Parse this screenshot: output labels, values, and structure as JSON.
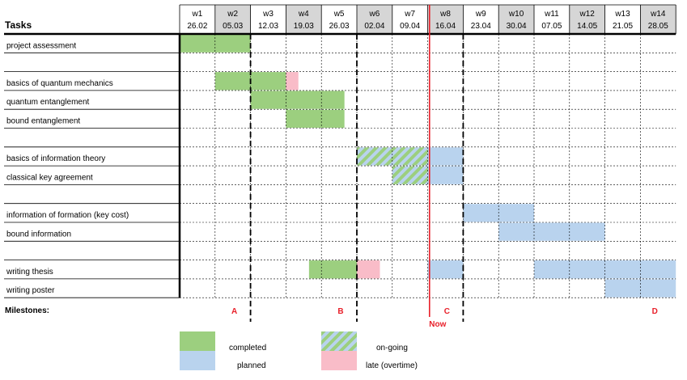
{
  "header": {
    "tasks_label": "Tasks"
  },
  "weeks": [
    {
      "label": "w1",
      "date": "26.02"
    },
    {
      "label": "w2",
      "date": "05.03"
    },
    {
      "label": "w3",
      "date": "12.03"
    },
    {
      "label": "w4",
      "date": "19.03"
    },
    {
      "label": "w5",
      "date": "26.03"
    },
    {
      "label": "w6",
      "date": "02.04"
    },
    {
      "label": "w7",
      "date": "09.04"
    },
    {
      "label": "w8",
      "date": "16.04"
    },
    {
      "label": "w9",
      "date": "23.04"
    },
    {
      "label": "w10",
      "date": "30.04"
    },
    {
      "label": "w11",
      "date": "07.05"
    },
    {
      "label": "w12",
      "date": "14.05"
    },
    {
      "label": "w13",
      "date": "21.05"
    },
    {
      "label": "w14",
      "date": "28.05"
    }
  ],
  "rows": [
    {
      "task": "project assessment",
      "bars": [
        {
          "status": "completed",
          "start": 0,
          "end": 2
        }
      ]
    },
    {
      "task": "",
      "bars": []
    },
    {
      "task": "basics of quantum mechanics",
      "bars": [
        {
          "status": "completed",
          "start": 1,
          "end": 3
        },
        {
          "status": "late",
          "start": 3,
          "end": 3.35
        }
      ]
    },
    {
      "task": "quantum entanglement",
      "bars": [
        {
          "status": "completed",
          "start": 2,
          "end": 4.65
        }
      ]
    },
    {
      "task": "bound entanglement",
      "bars": [
        {
          "status": "completed",
          "start": 3,
          "end": 4.65
        }
      ]
    },
    {
      "task": "",
      "bars": []
    },
    {
      "task": "basics of information theory",
      "bars": [
        {
          "status": "ongoing",
          "start": 5,
          "end": 7
        },
        {
          "status": "planned",
          "start": 7,
          "end": 8
        }
      ]
    },
    {
      "task": "classical key agreement",
      "bars": [
        {
          "status": "ongoing",
          "start": 6,
          "end": 7
        },
        {
          "status": "planned",
          "start": 7,
          "end": 8
        }
      ]
    },
    {
      "task": "",
      "bars": []
    },
    {
      "task": "information of formation (key cost)",
      "bars": [
        {
          "status": "planned",
          "start": 8,
          "end": 10
        }
      ]
    },
    {
      "task": "bound information",
      "bars": [
        {
          "status": "planned",
          "start": 9,
          "end": 12
        }
      ]
    },
    {
      "task": "",
      "bars": []
    },
    {
      "task": "writing thesis",
      "bars": [
        {
          "status": "completed",
          "start": 3.65,
          "end": 5
        },
        {
          "status": "late",
          "start": 5,
          "end": 5.65
        },
        {
          "status": "planned",
          "start": 7,
          "end": 8
        },
        {
          "status": "planned",
          "start": 10,
          "end": 14
        }
      ]
    },
    {
      "task": "writing poster",
      "bars": [
        {
          "status": "planned",
          "start": 12,
          "end": 14
        }
      ]
    }
  ],
  "milestones": {
    "label": "Milestones:",
    "items": [
      {
        "label": "A",
        "week": 2
      },
      {
        "label": "B",
        "week": 5
      },
      {
        "label": "C",
        "week": 8
      },
      {
        "label": "D",
        "week": 14
      }
    ]
  },
  "now": {
    "label": "Now",
    "week": 7.05
  },
  "legend": {
    "completed": "completed",
    "ongoing": "on-going",
    "planned": "planned",
    "late": "late (overtime)"
  },
  "colors": {
    "completed": "#9ccf7f",
    "planned": "#b9d3ee",
    "late": "#f9bcc8",
    "ongoing_a": "#9ccf7f",
    "ongoing_b": "#b9d3ee",
    "now_line": "#e8202a",
    "milestone_text": "#e8202a",
    "header_shade": "#d6d6d6"
  }
}
